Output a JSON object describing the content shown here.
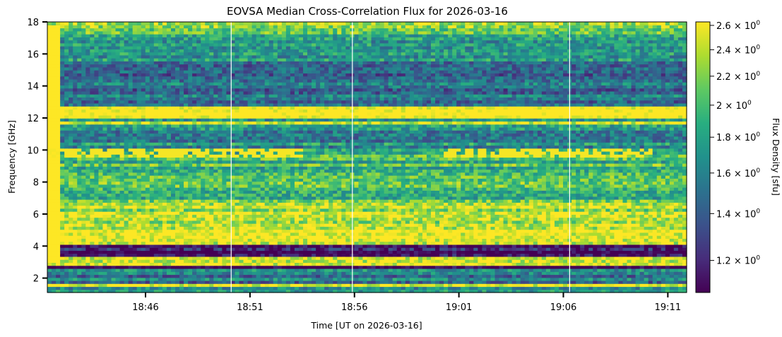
{
  "chart_data": {
    "type": "heatmap",
    "title": "EOVSA Median Cross-Correlation Flux for 2026-03-16",
    "xlabel": "Time [UT on 2026-03-16]",
    "ylabel": "Frequency [GHz]",
    "x_unit": "minutes since 18:00 UT",
    "xlim": [
      41.3,
      71.9
    ],
    "ylim": [
      1.1,
      18.0
    ],
    "x_ticks": [
      {
        "value": 46,
        "label": "18:46"
      },
      {
        "value": 51,
        "label": "18:51"
      },
      {
        "value": 56,
        "label": "18:56"
      },
      {
        "value": 61,
        "label": "19:01"
      },
      {
        "value": 66,
        "label": "19:06"
      },
      {
        "value": 71,
        "label": "19:11"
      }
    ],
    "y_ticks": [
      {
        "value": 2,
        "label": "2"
      },
      {
        "value": 4,
        "label": "4"
      },
      {
        "value": 6,
        "label": "6"
      },
      {
        "value": 8,
        "label": "8"
      },
      {
        "value": 10,
        "label": "10"
      },
      {
        "value": 12,
        "label": "12"
      },
      {
        "value": 14,
        "label": "14"
      },
      {
        "value": 16,
        "label": "16"
      },
      {
        "value": 18,
        "label": "18"
      }
    ],
    "colorbar": {
      "label": "Flux Density [sfu]",
      "scale": "log",
      "range": [
        1.08,
        2.63
      ],
      "colormap": "viridis",
      "ticks": [
        {
          "value": 1.2,
          "mantissa": "1.2"
        },
        {
          "value": 1.4,
          "mantissa": "1.4"
        },
        {
          "value": 1.6,
          "mantissa": "1.6"
        },
        {
          "value": 1.8,
          "mantissa": "1.8"
        },
        {
          "value": 2.0,
          "mantissa": "2"
        },
        {
          "value": 2.2,
          "mantissa": "2.2"
        },
        {
          "value": 2.4,
          "mantissa": "2.4"
        },
        {
          "value": 2.6,
          "mantissa": "2.6"
        }
      ],
      "tick_base": "10",
      "tick_exponent": "0",
      "tick_times": "×"
    },
    "frequency_bands": [
      {
        "from": 1.1,
        "to": 1.45,
        "level": 1.7
      },
      {
        "from": 1.45,
        "to": 1.7,
        "level": 2.6
      },
      {
        "from": 1.7,
        "to": 2.6,
        "level": 1.55
      },
      {
        "from": 2.6,
        "to": 2.7,
        "level": 1.1
      },
      {
        "from": 2.7,
        "to": 3.35,
        "level": 2.6
      },
      {
        "from": 3.35,
        "to": 3.45,
        "level": 1.1
      },
      {
        "from": 3.45,
        "to": 3.55,
        "level": 2.5
      },
      {
        "from": 3.55,
        "to": 3.65,
        "level": 1.1
      },
      {
        "from": 3.65,
        "to": 3.75,
        "level": 2.6
      },
      {
        "from": 3.75,
        "to": 3.85,
        "level": 1.12
      },
      {
        "from": 3.85,
        "to": 3.95,
        "level": 2.6
      },
      {
        "from": 3.95,
        "to": 4.1,
        "level": 1.15
      },
      {
        "from": 4.1,
        "to": 5.3,
        "level": 2.55
      },
      {
        "from": 5.3,
        "to": 7.0,
        "level": 2.3
      },
      {
        "from": 7.0,
        "to": 9.4,
        "level": 1.95
      },
      {
        "from": 9.4,
        "to": 10.0,
        "level": 2.0
      },
      {
        "from": 10.0,
        "to": 11.6,
        "level": 1.65
      },
      {
        "from": 11.6,
        "to": 11.85,
        "level": 2.4
      },
      {
        "from": 11.85,
        "to": 12.05,
        "level": 1.8
      },
      {
        "from": 12.05,
        "to": 12.65,
        "level": 2.63
      },
      {
        "from": 12.65,
        "to": 15.5,
        "level": 1.5
      },
      {
        "from": 15.5,
        "to": 17.3,
        "level": 1.8
      },
      {
        "from": 17.3,
        "to": 18.0,
        "level": 2.15
      }
    ],
    "burst_band": {
      "center_ghz": 9.85,
      "level": 2.6,
      "active_ranges": [
        [
          41.3,
          53.6
        ],
        [
          60.2,
          70.3
        ]
      ]
    },
    "data_gaps": [
      50.1,
      55.9,
      66.3
    ]
  }
}
